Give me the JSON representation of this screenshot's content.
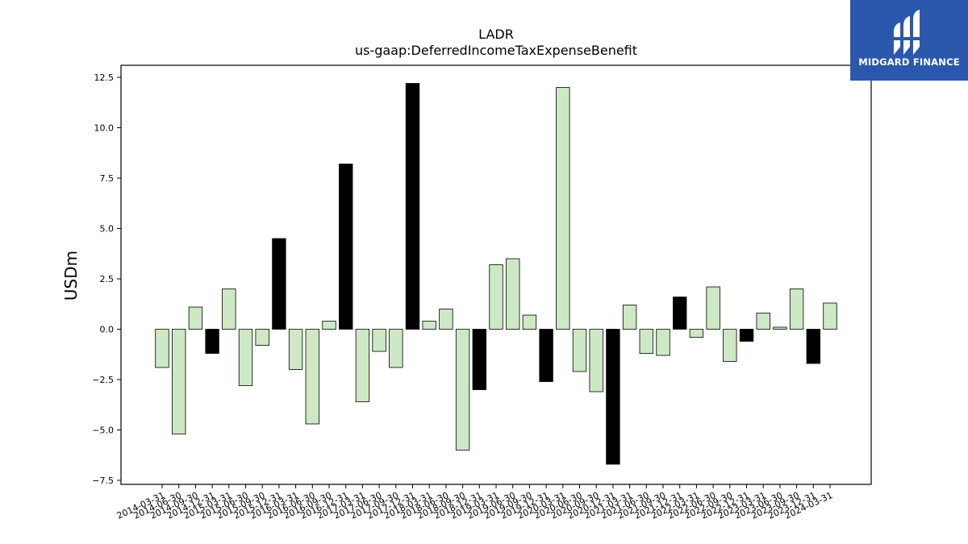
{
  "chart_data": {
    "type": "bar",
    "title": "LADR",
    "subtitle": "us-gaap:DeferredIncomeTaxExpenseBenefit",
    "xlabel": "",
    "ylabel": "USDm",
    "ylim": [
      -7.7,
      13.1
    ],
    "yticks": [
      "12.5",
      "10.0",
      "7.5",
      "5.0",
      "2.5",
      "0.0",
      "−2.5",
      "−5.0",
      "−7.5"
    ],
    "ytick_values": [
      12.5,
      10.0,
      7.5,
      5.0,
      2.5,
      0.0,
      -2.5,
      -5.0,
      -7.5
    ],
    "grid": false,
    "colors": {
      "quarterly": "#cce8c4",
      "annual": "#000000",
      "edge": "#000000"
    },
    "categories": [
      "2014-03-31",
      "2014-06-30",
      "2014-09-30",
      "2014-12-31",
      "2015-03-31",
      "2015-06-30",
      "2015-09-30",
      "2015-12-31",
      "2016-03-31",
      "2016-06-30",
      "2016-09-30",
      "2016-12-31",
      "2017-03-31",
      "2017-06-30",
      "2017-09-30",
      "2017-12-31",
      "2018-03-31",
      "2018-06-30",
      "2018-09-30",
      "2018-12-31",
      "2019-03-31",
      "2019-06-30",
      "2019-09-30",
      "2019-12-31",
      "2020-03-31",
      "2020-06-30",
      "2020-09-30",
      "2020-12-31",
      "2021-03-31",
      "2021-06-30",
      "2021-09-30",
      "2021-12-31",
      "2022-03-31",
      "2022-06-30",
      "2022-09-30",
      "2022-12-31",
      "2023-03-31",
      "2023-06-30",
      "2023-09-30",
      "2023-12-31",
      "2024-03-31"
    ],
    "values": [
      -1.9,
      -5.2,
      1.1,
      -1.2,
      2.0,
      -2.8,
      -0.8,
      4.5,
      -2.0,
      -4.7,
      0.4,
      8.2,
      -3.6,
      -1.1,
      -1.9,
      12.2,
      0.4,
      1.0,
      -6.0,
      -3.0,
      3.2,
      3.5,
      0.7,
      -2.6,
      12.0,
      -2.1,
      -3.1,
      -6.7,
      1.2,
      -1.2,
      -1.3,
      1.6,
      -0.4,
      2.1,
      -1.6,
      -0.6,
      0.8,
      0.1,
      2.0,
      -1.7,
      1.3
    ],
    "annual_flags": [
      false,
      false,
      false,
      true,
      false,
      false,
      false,
      true,
      false,
      false,
      false,
      true,
      false,
      false,
      false,
      true,
      false,
      false,
      false,
      true,
      false,
      false,
      false,
      true,
      false,
      false,
      false,
      true,
      false,
      false,
      false,
      true,
      false,
      false,
      false,
      true,
      false,
      false,
      false,
      true,
      false
    ]
  },
  "logo": {
    "text": "MIDGARD FINANCE",
    "background": "#2b58ad"
  }
}
